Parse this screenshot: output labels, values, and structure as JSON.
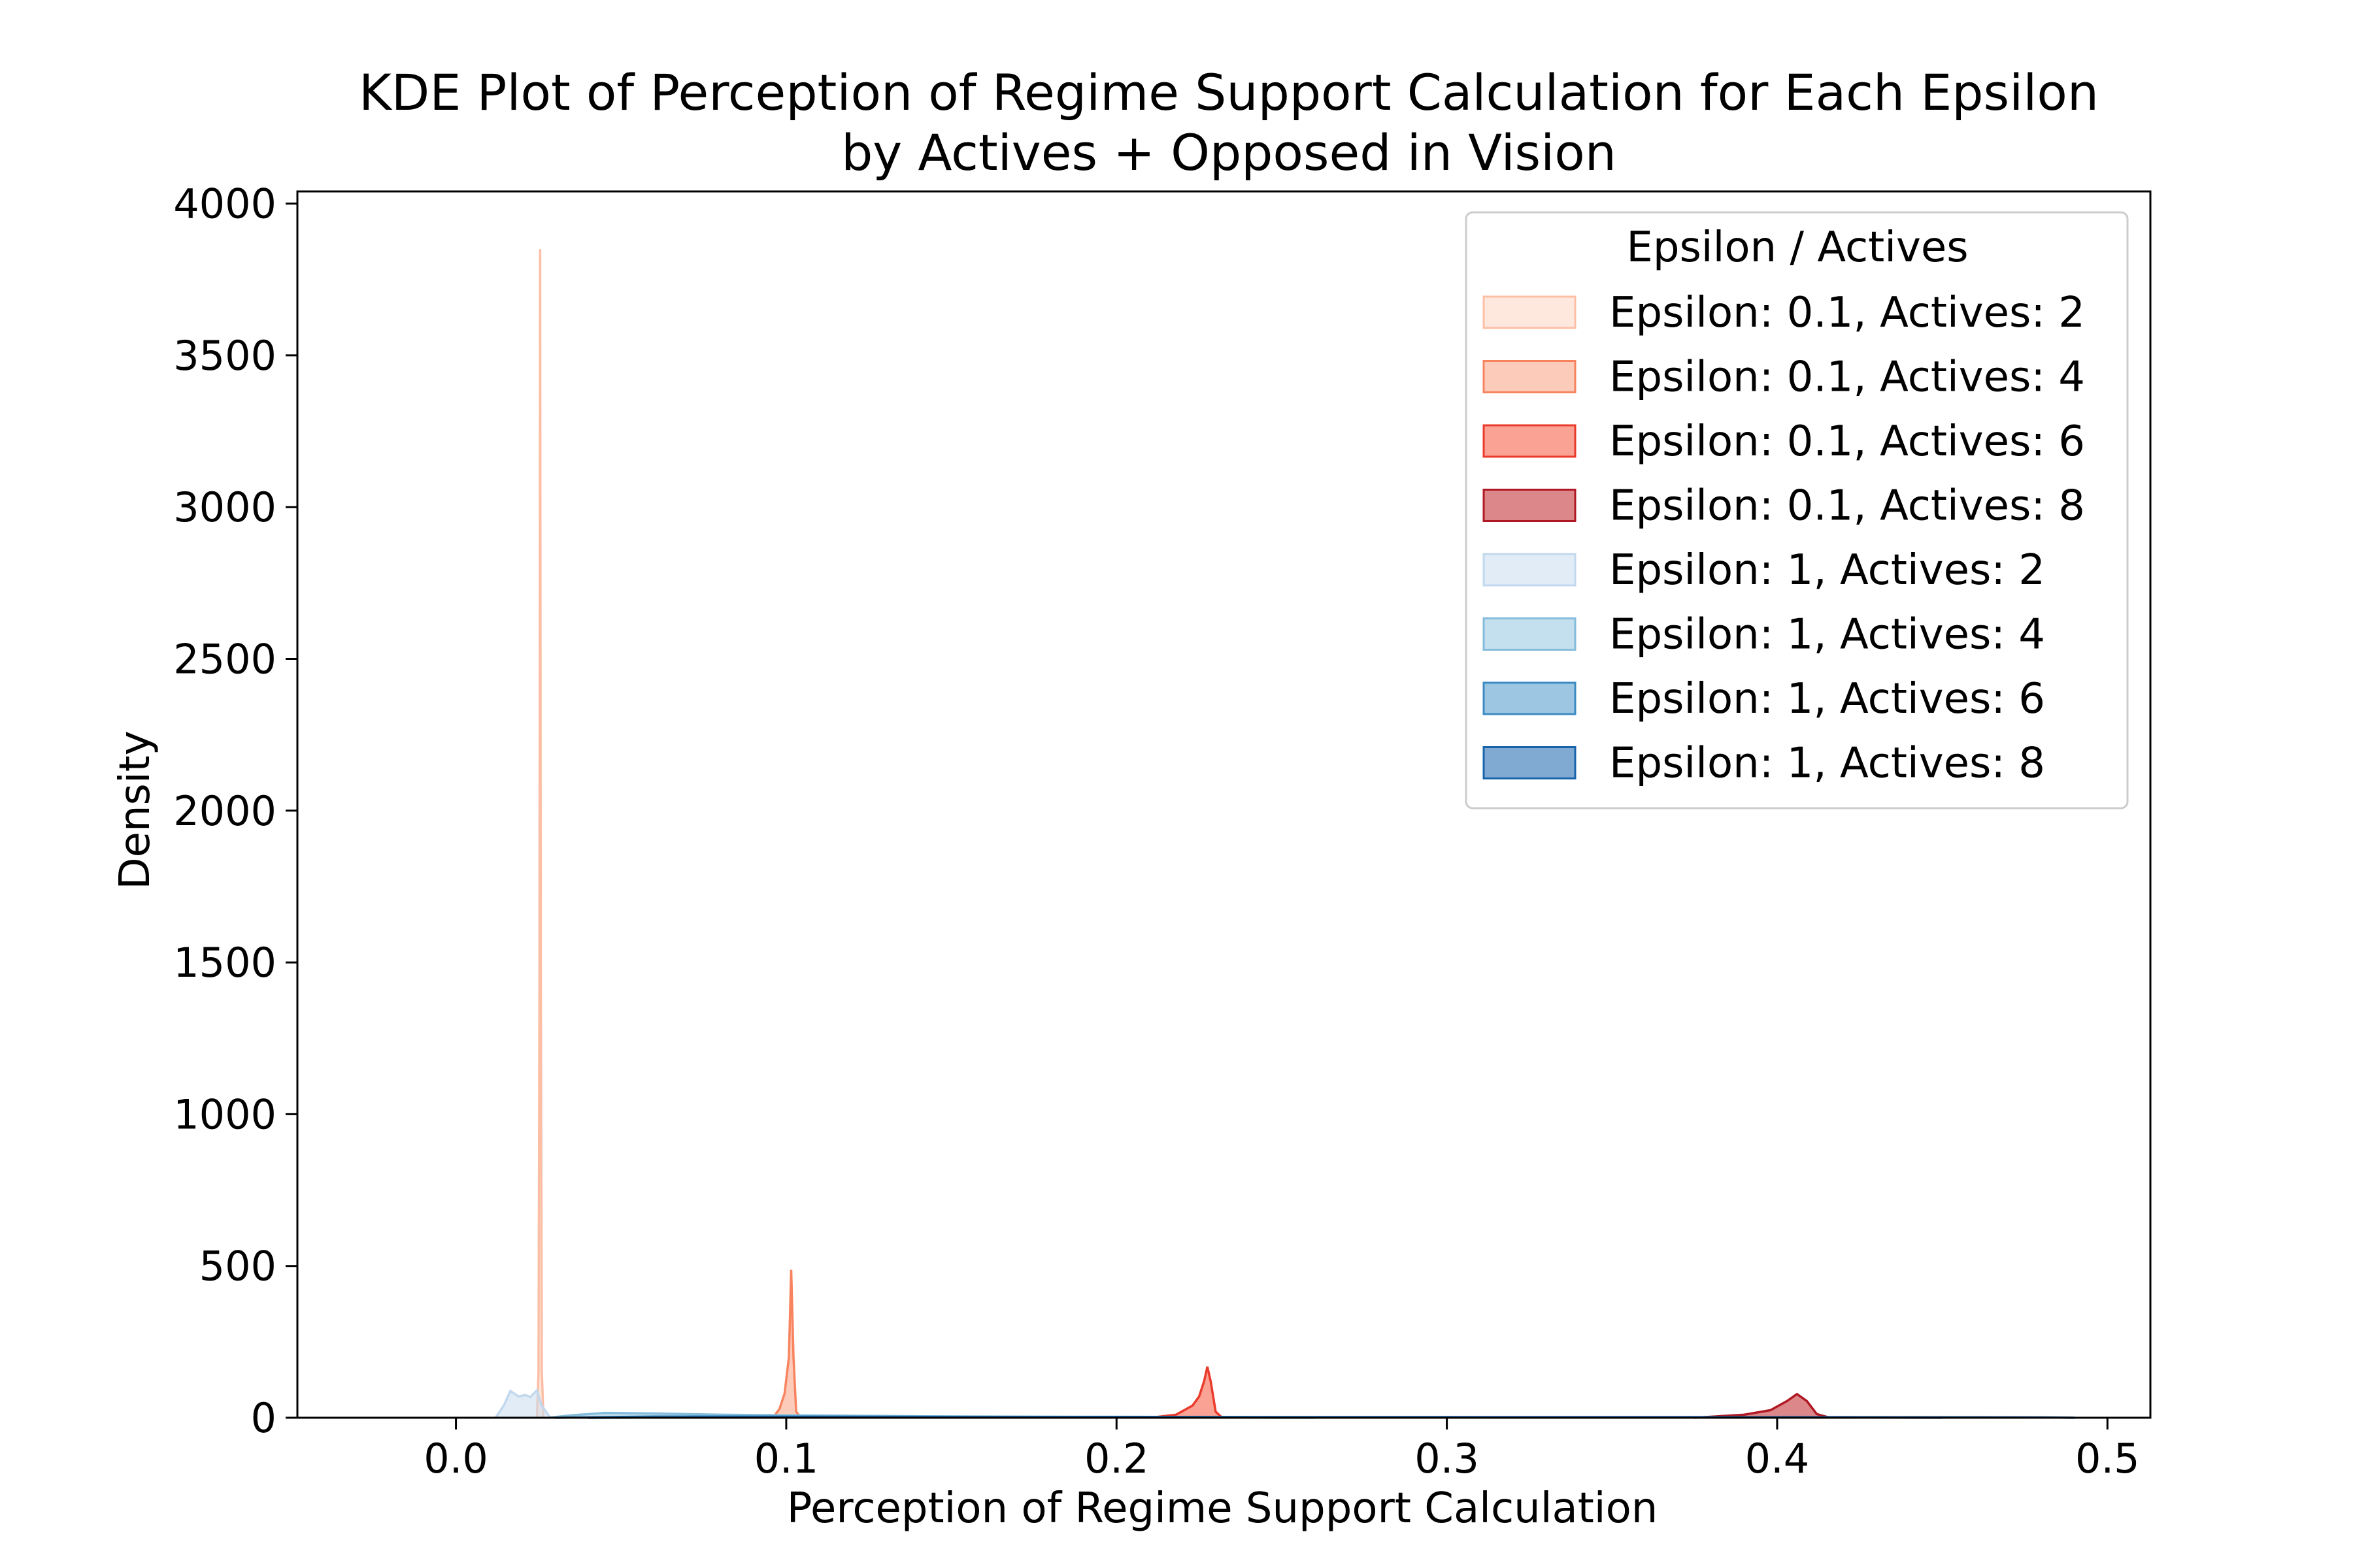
{
  "chart_data": {
    "type": "area",
    "title_lines": [
      "KDE Plot of Perception of Regime Support Calculation for Each Epsilon",
      "by Actives + Opposed in Vision"
    ],
    "xlabel": "Perception of Regime Support Calculation",
    "ylabel": "Density",
    "xlim": [
      -0.048,
      0.513
    ],
    "ylim": [
      0,
      4040
    ],
    "x_ticks": [
      0.0,
      0.1,
      0.2,
      0.3,
      0.4,
      0.5
    ],
    "x_tick_labels": [
      "0.0",
      "0.1",
      "0.2",
      "0.3",
      "0.4",
      "0.5"
    ],
    "y_ticks": [
      0,
      500,
      1000,
      1500,
      2000,
      2500,
      3000,
      3500,
      4000
    ],
    "y_tick_labels": [
      "0",
      "500",
      "1000",
      "1500",
      "2000",
      "2500",
      "3000",
      "3500",
      "4000"
    ],
    "grid": false,
    "legend": {
      "title": "Epsilon / Actives",
      "placement": "top-right"
    },
    "series": [
      {
        "name": "Epsilon: 0.1, Actives: 2",
        "fill": "#fdd3c1",
        "stroke": "#fcbfa6",
        "points": [
          [
            0.0245,
            0
          ],
          [
            0.025,
            150
          ],
          [
            0.0253,
            1500
          ],
          [
            0.0255,
            3850
          ],
          [
            0.0257,
            1500
          ],
          [
            0.026,
            150
          ],
          [
            0.0265,
            0
          ]
        ]
      },
      {
        "name": "Epsilon: 0.1, Actives: 4",
        "fill": "#fca082",
        "stroke": "#f8845f",
        "points": [
          [
            0.096,
            0
          ],
          [
            0.098,
            30
          ],
          [
            0.0995,
            80
          ],
          [
            0.1008,
            200
          ],
          [
            0.1015,
            487
          ],
          [
            0.1022,
            200
          ],
          [
            0.103,
            20
          ],
          [
            0.1045,
            0
          ]
        ]
      },
      {
        "name": "Epsilon: 0.1, Actives: 6",
        "fill": "#f5553d",
        "stroke": "#ea3a2b",
        "points": [
          [
            0.21,
            0
          ],
          [
            0.218,
            10
          ],
          [
            0.223,
            40
          ],
          [
            0.225,
            70
          ],
          [
            0.2265,
            120
          ],
          [
            0.2275,
            168
          ],
          [
            0.2285,
            120
          ],
          [
            0.23,
            20
          ],
          [
            0.232,
            0
          ]
        ]
      },
      {
        "name": "Epsilon: 0.1, Actives: 8",
        "fill": "#c0262c",
        "stroke": "#b01924",
        "points": [
          [
            0.375,
            0
          ],
          [
            0.39,
            10
          ],
          [
            0.398,
            25
          ],
          [
            0.403,
            55
          ],
          [
            0.406,
            78
          ],
          [
            0.409,
            55
          ],
          [
            0.412,
            12
          ],
          [
            0.416,
            0
          ]
        ]
      },
      {
        "name": "Epsilon: 1, Actives: 2",
        "fill": "#c9dcf1",
        "stroke": "#c2d8ee",
        "points": [
          [
            0.012,
            0
          ],
          [
            0.0145,
            40
          ],
          [
            0.0165,
            88
          ],
          [
            0.019,
            70
          ],
          [
            0.021,
            75
          ],
          [
            0.0225,
            68
          ],
          [
            0.0245,
            90
          ],
          [
            0.026,
            40
          ],
          [
            0.0285,
            0
          ]
        ]
      },
      {
        "name": "Epsilon: 1, Actives: 4",
        "fill": "#93c4df",
        "stroke": "#84bcdb",
        "points": [
          [
            0.028,
            0
          ],
          [
            0.035,
            8
          ],
          [
            0.045,
            16
          ],
          [
            0.06,
            14
          ],
          [
            0.08,
            10
          ],
          [
            0.1,
            8
          ],
          [
            0.14,
            5
          ],
          [
            0.18,
            3
          ],
          [
            0.22,
            1
          ],
          [
            0.26,
            0
          ]
        ]
      },
      {
        "name": "Epsilon: 1, Actives: 6",
        "fill": "#4a98c9",
        "stroke": "#3b8bc2",
        "points": [
          [
            0.03,
            0
          ],
          [
            0.06,
            4
          ],
          [
            0.1,
            4
          ],
          [
            0.15,
            3
          ],
          [
            0.2,
            3
          ],
          [
            0.25,
            2
          ],
          [
            0.3,
            2
          ],
          [
            0.35,
            1
          ],
          [
            0.4,
            1
          ],
          [
            0.45,
            0
          ]
        ]
      },
      {
        "name": "Epsilon: 1, Actives: 8",
        "fill": "#1764ab",
        "stroke": "#1764ab",
        "points": [
          [
            0.04,
            0
          ],
          [
            0.1,
            2
          ],
          [
            0.2,
            2
          ],
          [
            0.3,
            2
          ],
          [
            0.4,
            2
          ],
          [
            0.48,
            1
          ],
          [
            0.49,
            0
          ]
        ]
      }
    ]
  }
}
